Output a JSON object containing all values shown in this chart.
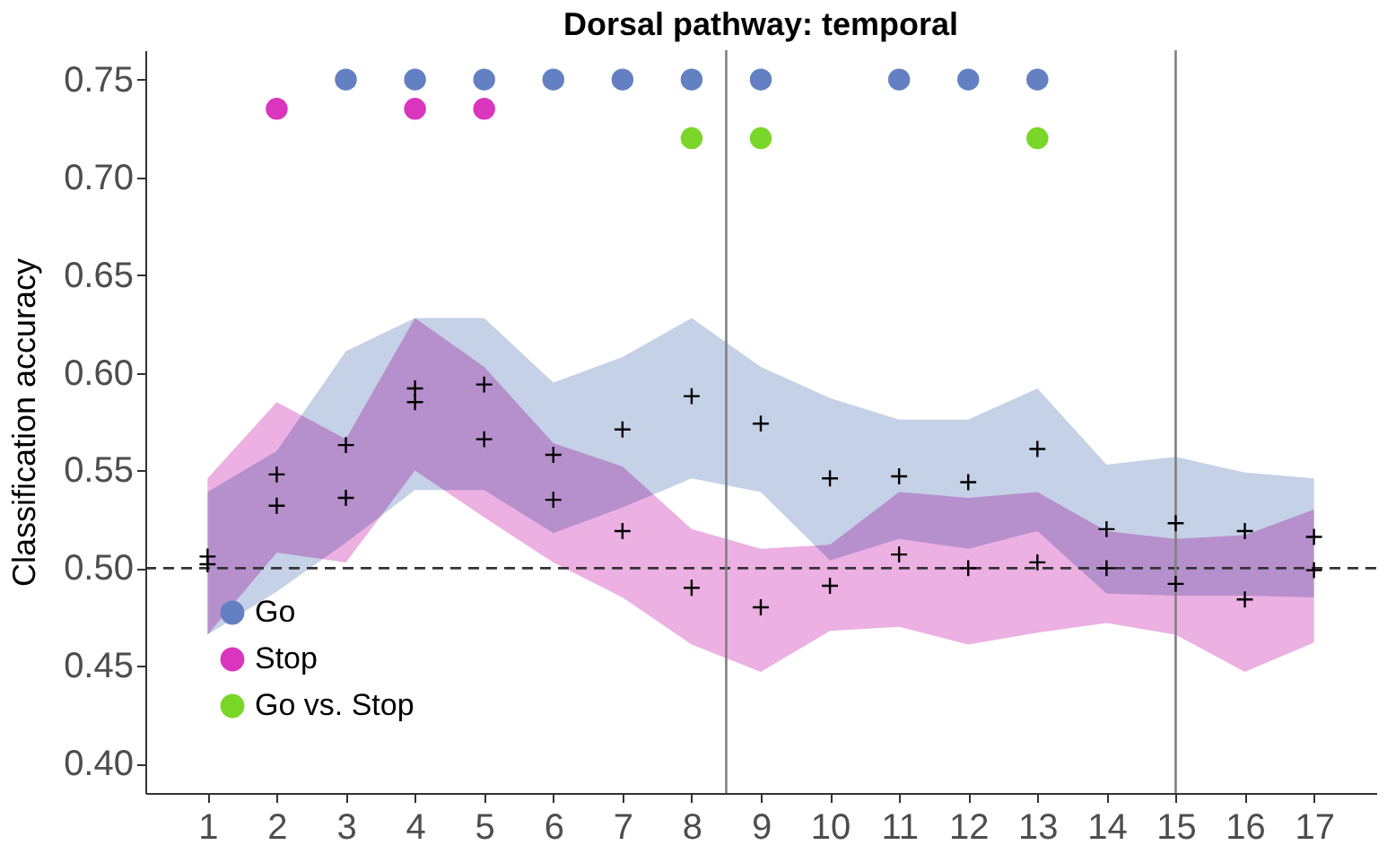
{
  "chart_data": {
    "type": "scatter",
    "title": "Dorsal pathway: temporal",
    "ylabel": "Classification accuracy",
    "xlim": [
      0.1,
      17.9
    ],
    "xticks": [
      1,
      2,
      3,
      4,
      5,
      6,
      7,
      8,
      9,
      10,
      11,
      12,
      13,
      14,
      15,
      16,
      17
    ],
    "ylim": [
      0.385,
      0.765
    ],
    "yticks": [
      {
        "value": 0.4,
        "label": "0.40"
      },
      {
        "value": 0.45,
        "label": "0.45"
      },
      {
        "value": 0.5,
        "label": "0.50"
      },
      {
        "value": 0.55,
        "label": "0.55"
      },
      {
        "value": 0.6,
        "label": "0.60"
      },
      {
        "value": 0.65,
        "label": "0.65"
      },
      {
        "value": 0.7,
        "label": "0.70"
      },
      {
        "value": 0.75,
        "label": "0.75"
      }
    ],
    "grid": false,
    "legend": "bottom left",
    "ref_lines": [
      {
        "axis": "x",
        "value": 8.5,
        "color": "#808080",
        "line_style": "solid"
      },
      {
        "axis": "x",
        "value": 15,
        "color": "#808080",
        "line_style": "solid"
      },
      {
        "axis": "y",
        "value": 0.5,
        "color": "#333333",
        "line_style": "dashed"
      }
    ],
    "series": [
      {
        "marker": "cross",
        "color": "#c5d1e6",
        "colors": [
          "#000000",
          "#000000",
          "#000000",
          "#000000",
          "#000000",
          "#000000",
          "#000000",
          "#000000",
          "#000000",
          "#000000",
          "#000000",
          "#000000",
          "#000000",
          "#000000",
          "#000000",
          "#000000",
          "#000000"
        ],
        "x": [
          1,
          2,
          3,
          4,
          5,
          6,
          7,
          8,
          9,
          10,
          11,
          12,
          13,
          14,
          15,
          16,
          17
        ],
        "values": [
          0.506,
          0.548,
          0.563,
          0.592,
          0.594,
          0.558,
          0.571,
          0.588,
          0.574,
          0.546,
          0.547,
          0.544,
          0.561,
          0.52,
          0.523,
          0.519,
          0.516
        ],
        "lower": [
          0.466,
          0.488,
          0.513,
          0.54,
          0.54,
          0.518,
          0.531,
          0.546,
          0.539,
          0.504,
          0.515,
          0.51,
          0.519,
          0.487,
          0.486,
          0.486,
          0.485
        ],
        "upper": [
          0.539,
          0.56,
          0.611,
          0.628,
          0.628,
          0.595,
          0.608,
          0.628,
          0.603,
          0.587,
          0.576,
          0.576,
          0.592,
          0.553,
          0.557,
          0.549,
          0.546
        ]
      },
      {
        "marker": "cross",
        "color": "#ecb0e2",
        "colors": [
          "#000000",
          "#000000",
          "#000000",
          "#000000",
          "#000000",
          "#000000",
          "#000000",
          "#000000",
          "#000000",
          "#000000",
          "#000000",
          "#000000",
          "#000000",
          "#000000",
          "#000000",
          "#000000",
          "#000000"
        ],
        "x": [
          1,
          2,
          3,
          4,
          5,
          6,
          7,
          8,
          9,
          10,
          11,
          12,
          13,
          14,
          15,
          16,
          17
        ],
        "values": [
          0.502,
          0.532,
          0.536,
          0.585,
          0.566,
          0.535,
          0.519,
          0.49,
          0.48,
          0.491,
          0.507,
          0.5,
          0.503,
          0.5,
          0.492,
          0.484,
          0.499
        ],
        "lower": [
          0.466,
          0.508,
          0.503,
          0.55,
          0.526,
          0.503,
          0.485,
          0.461,
          0.447,
          0.468,
          0.47,
          0.461,
          0.467,
          0.472,
          0.466,
          0.447,
          0.462
        ],
        "upper": [
          0.546,
          0.585,
          0.566,
          0.628,
          0.603,
          0.564,
          0.552,
          0.52,
          0.51,
          0.512,
          0.539,
          0.536,
          0.539,
          0.519,
          0.515,
          0.517,
          0.53
        ]
      },
      {
        "type": "scatter",
        "marker": "circle",
        "name": "Go",
        "color": "#6381c2",
        "x": [
          3,
          4,
          5,
          6,
          7,
          8,
          9,
          11,
          12,
          13
        ],
        "values": [
          0.75,
          0.75,
          0.75,
          0.75,
          0.75,
          0.75,
          0.75,
          0.75,
          0.75,
          0.75
        ]
      },
      {
        "type": "scatter",
        "marker": "circle",
        "name": "Stop",
        "color": "#d936bd",
        "x": [
          2,
          4,
          5
        ],
        "values": [
          0.735,
          0.735,
          0.735
        ]
      },
      {
        "type": "scatter",
        "marker": "circle",
        "name": "Go vs. Stop",
        "color": "#7ad629",
        "x": [
          8,
          9,
          13
        ],
        "values": [
          0.72,
          0.72,
          0.72
        ]
      }
    ]
  }
}
